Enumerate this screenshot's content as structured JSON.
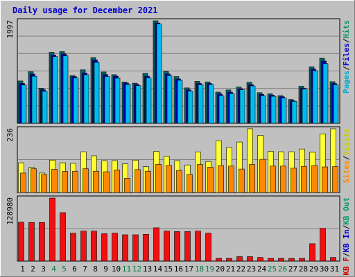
{
  "window": {
    "title": "Daily usage for December 2021",
    "background": "#c0c0c0",
    "title_color": "#0000cc"
  },
  "chart_data": [
    {
      "type": "bar",
      "panel": "top",
      "ymax_label": "1997",
      "ylim": [
        0,
        1997
      ],
      "legend_placement": "right",
      "legend": [
        {
          "text": "Pages",
          "color": "#00aacc"
        },
        {
          "text": "/",
          "color": "#000000"
        },
        {
          "text": "Files",
          "color": "#0000cc"
        },
        {
          "text": "/",
          "color": "#000000"
        },
        {
          "text": "Hits",
          "color": "#009966"
        }
      ],
      "categories": [
        "1",
        "2",
        "3",
        "4",
        "5",
        "6",
        "7",
        "8",
        "9",
        "10",
        "11",
        "12",
        "13",
        "14",
        "15",
        "16",
        "17",
        "18",
        "19",
        "20",
        "21",
        "22",
        "23",
        "24",
        "25",
        "26",
        "27",
        "28",
        "29",
        "30",
        "31"
      ],
      "series": [
        {
          "name": "Hits",
          "color": "#006666",
          "values": [
            824,
            1004,
            683,
            1383,
            1397,
            928,
            1042,
            1279,
            1000,
            946,
            804,
            781,
            972,
            1997,
            1011,
            910,
            689,
            818,
            807,
            607,
            649,
            706,
            799,
            596,
            575,
            539,
            463,
            722,
            1097,
            1267,
            811
          ]
        },
        {
          "name": "Files",
          "color": "#0000aa",
          "values": [
            776,
            958,
            652,
            1332,
            1353,
            908,
            979,
            1232,
            949,
            917,
            783,
            757,
            916,
            1954,
            960,
            863,
            651,
            777,
            776,
            572,
            606,
            670,
            753,
            563,
            549,
            515,
            440,
            685,
            1055,
            1214,
            775
          ]
        },
        {
          "name": "Pages",
          "color": "#00bbee",
          "values": [
            745,
            915,
            624,
            1299,
            1314,
            883,
            946,
            1186,
            911,
            878,
            756,
            733,
            887,
            1935,
            930,
            837,
            628,
            752,
            754,
            539,
            579,
            652,
            727,
            537,
            525,
            491,
            426,
            667,
            1024,
            1163,
            750
          ]
        }
      ]
    },
    {
      "type": "bar",
      "panel": "middle",
      "ymax_label": "236",
      "ylim": [
        0,
        236
      ],
      "legend_placement": "right",
      "legend": [
        {
          "text": "Sites",
          "color": "#ff8800"
        },
        {
          "text": "/",
          "color": "#000000"
        },
        {
          "text": "Visits",
          "color": "#cccc00"
        }
      ],
      "categories": [
        "1",
        "2",
        "3",
        "4",
        "5",
        "6",
        "7",
        "8",
        "9",
        "10",
        "11",
        "12",
        "13",
        "14",
        "15",
        "16",
        "17",
        "18",
        "19",
        "20",
        "21",
        "22",
        "23",
        "24",
        "25",
        "26",
        "27",
        "28",
        "29",
        "30",
        "31"
      ],
      "series": [
        {
          "name": "Visits",
          "color": "#ffff33",
          "values": [
            110,
            93,
            72,
            120,
            110,
            108,
            151,
            136,
            118,
            118,
            106,
            120,
            96,
            152,
            134,
            118,
            102,
            150,
            115,
            192,
            167,
            187,
            236,
            212,
            153,
            151,
            151,
            161,
            149,
            217,
            236
          ]
        },
        {
          "name": "Sites",
          "color": "#ff8800",
          "values": [
            72,
            88,
            67,
            86,
            78,
            79,
            88,
            79,
            77,
            84,
            53,
            85,
            79,
            104,
            100,
            82,
            67,
            104,
            94,
            100,
            98,
            87,
            104,
            123,
            98,
            98,
            90,
            97,
            100,
            95,
            96
          ]
        }
      ]
    },
    {
      "type": "bar",
      "panel": "bottom",
      "ymax_label": "128980",
      "ylim": [
        0,
        128980
      ],
      "legend_placement": "right",
      "legend": [
        {
          "text": "KB F",
          "color": "#cc0000"
        },
        {
          "text": "/",
          "color": "#000000"
        },
        {
          "text": "KB In",
          "color": "#0000cc"
        },
        {
          "text": "/",
          "color": "#000000"
        },
        {
          "text": "KB Out",
          "color": "#009966"
        }
      ],
      "categories": [
        "1",
        "2",
        "3",
        "4",
        "5",
        "6",
        "7",
        "8",
        "9",
        "10",
        "11",
        "12",
        "13",
        "14",
        "15",
        "16",
        "17",
        "18",
        "19",
        "20",
        "21",
        "22",
        "23",
        "24",
        "25",
        "26",
        "27",
        "28",
        "29",
        "30",
        "31"
      ],
      "series": [
        {
          "name": "KB F",
          "color": "#ee1111",
          "values": [
            79580,
            78910,
            78910,
            128980,
            99160,
            57120,
            61550,
            61550,
            56010,
            57120,
            53790,
            53790,
            54900,
            68200,
            61550,
            60450,
            60450,
            61550,
            57120,
            5570,
            5570,
            9140,
            9140,
            7470,
            5570,
            5570,
            5570,
            5570,
            35620,
            67090,
            7470
          ]
        }
      ]
    }
  ],
  "xaxis": {
    "labels": [
      "1",
      "2",
      "3",
      "4",
      "5",
      "6",
      "7",
      "8",
      "9",
      "10",
      "11",
      "12",
      "13",
      "14",
      "15",
      "16",
      "17",
      "18",
      "19",
      "20",
      "21",
      "22",
      "23",
      "24",
      "25",
      "26",
      "27",
      "28",
      "29",
      "30",
      "31"
    ],
    "weekend_color": "#008040",
    "weekend_days": [
      "4",
      "5",
      "11",
      "12",
      "18",
      "19",
      "25",
      "26"
    ]
  }
}
